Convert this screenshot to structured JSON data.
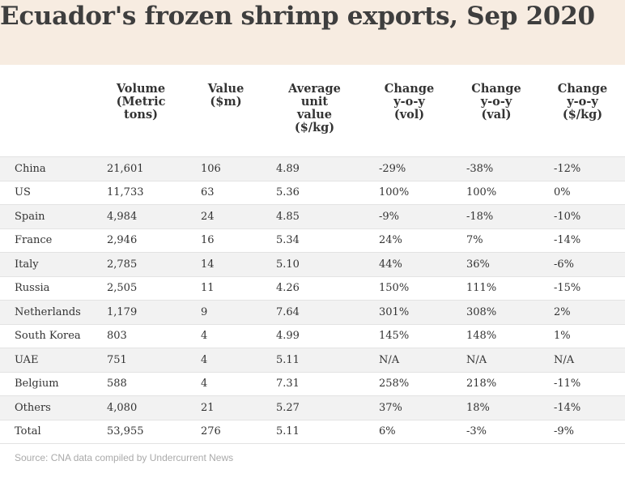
{
  "chart_data": {
    "type": "table",
    "title": "Ecuador's frozen shrimp exports, Sep 2020",
    "columns": [
      "",
      "Volume\n(Metric\ntons)",
      "Value\n($m)",
      "Average\nunit\nvalue\n($/kg)",
      "Change\ny-o-y\n(vol)",
      "Change\ny-o-y\n(val)",
      "Change\ny-o-y\n($/kg)"
    ],
    "rows": [
      [
        "China",
        "21,601",
        "106",
        "4.89",
        "-29%",
        "-38%",
        "-12%"
      ],
      [
        "US",
        "11,733",
        "63",
        "5.36",
        "100%",
        "100%",
        "0%"
      ],
      [
        "Spain",
        "4,984",
        "24",
        "4.85",
        "-9%",
        "-18%",
        "-10%"
      ],
      [
        "France",
        "2,946",
        "16",
        "5.34",
        "24%",
        "7%",
        "-14%"
      ],
      [
        "Italy",
        "2,785",
        "14",
        "5.10",
        "44%",
        "36%",
        "-6%"
      ],
      [
        "Russia",
        "2,505",
        "11",
        "4.26",
        "150%",
        "111%",
        "-15%"
      ],
      [
        "Netherlands",
        "1,179",
        "9",
        "7.64",
        "301%",
        "308%",
        "2%"
      ],
      [
        "South Korea",
        "803",
        "4",
        "4.99",
        "145%",
        "148%",
        "1%"
      ],
      [
        "UAE",
        "751",
        "4",
        "5.11",
        "N/A",
        "N/A",
        "N/A"
      ],
      [
        "Belgium",
        "588",
        "4",
        "7.31",
        "258%",
        "218%",
        "-11%"
      ],
      [
        "Others",
        "4,080",
        "21",
        "5.27",
        "37%",
        "18%",
        "-14%"
      ],
      [
        "Total",
        "53,955",
        "276",
        "5.11",
        "6%",
        "-3%",
        "-9%"
      ]
    ],
    "source": "Source: CNA data compiled by Undercurrent News"
  },
  "colors": {
    "header_background": "#f7ece1",
    "stripe_background": "#f2f2f2",
    "text": "#333333",
    "source_text": "#aaaaaa"
  }
}
